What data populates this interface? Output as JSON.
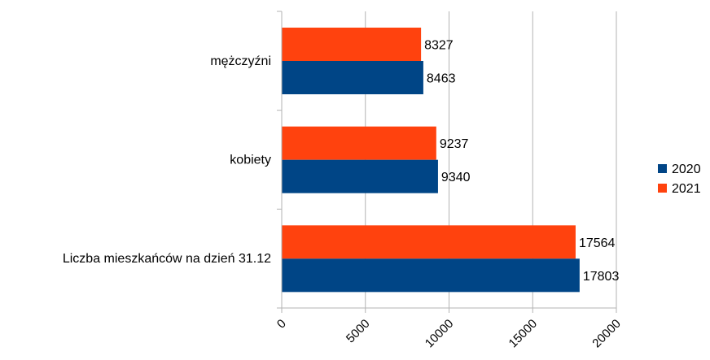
{
  "chart_data": {
    "type": "bar",
    "orientation": "horizontal",
    "categories": [
      "mężczyźni",
      "kobiety",
      "Liczba mieszkańców na dzień 31.12"
    ],
    "series": [
      {
        "name": "2020",
        "color": "#004586",
        "values": [
          8463,
          9340,
          17803
        ]
      },
      {
        "name": "2021",
        "color": "#ff420e",
        "values": [
          8327,
          9237,
          17564
        ]
      }
    ],
    "xlim": [
      0,
      20000
    ],
    "x_ticks": [
      0,
      5000,
      10000,
      15000,
      20000
    ],
    "x_tick_labels": [
      "0",
      "5000",
      "10000",
      "15000",
      "20000"
    ],
    "x_tick_rotation": "-45deg",
    "grid": "vertical",
    "legend_position": "right",
    "data_labels": true
  }
}
